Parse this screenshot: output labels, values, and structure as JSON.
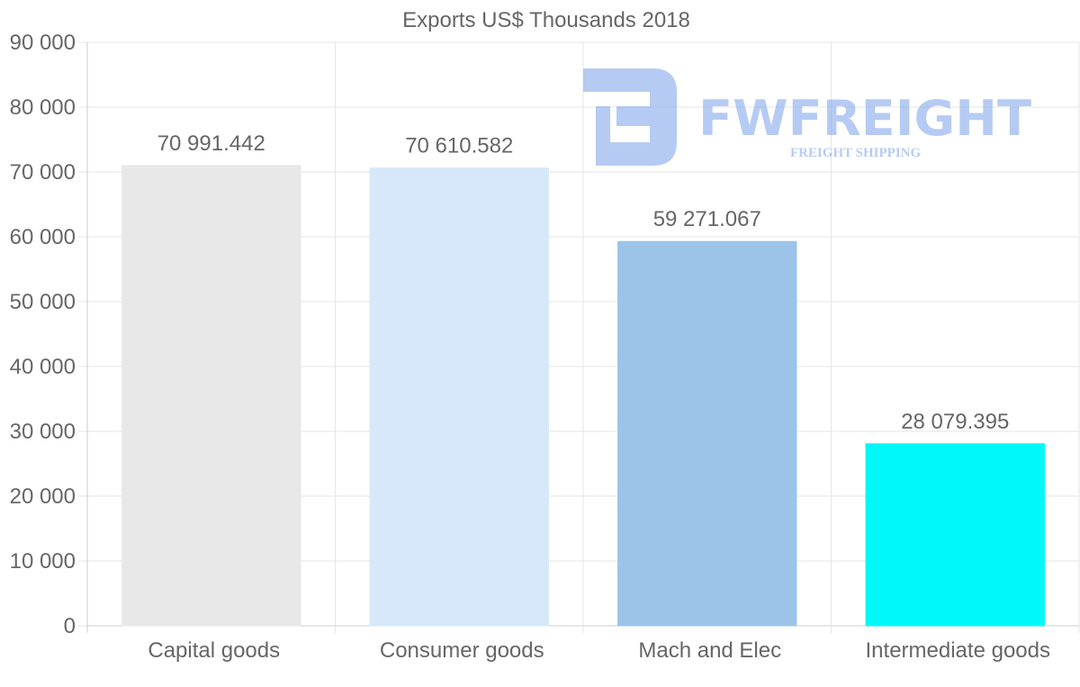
{
  "chart_data": {
    "type": "bar",
    "title": "Exports US$ Thousands 2018",
    "categories": [
      "Capital goods",
      "Consumer goods",
      "Mach and Elec",
      "Intermediate goods"
    ],
    "values": [
      70991.442,
      70610.582,
      59271.067,
      28079.395
    ],
    "value_labels": [
      "70 991.442",
      "70 610.582",
      "59 271.067",
      "28 079.395"
    ],
    "bar_colors": [
      "#e8e8e8",
      "#d6e8fa",
      "#9bc4e8",
      "#00f8f8"
    ],
    "ylim": [
      0,
      90000
    ],
    "yticks": [
      0,
      10000,
      20000,
      30000,
      40000,
      50000,
      60000,
      70000,
      80000,
      90000
    ],
    "ytick_labels": [
      "0",
      "10 000",
      "20 000",
      "30 000",
      "40 000",
      "50 000",
      "60 000",
      "70 000",
      "80 000",
      "90 000"
    ],
    "xlabel": "",
    "ylabel": "",
    "grid": true
  },
  "watermark": {
    "brand": "FWFREIGHT",
    "tagline": "FREIGHT SHIPPING",
    "color": "#7aa2ec"
  }
}
